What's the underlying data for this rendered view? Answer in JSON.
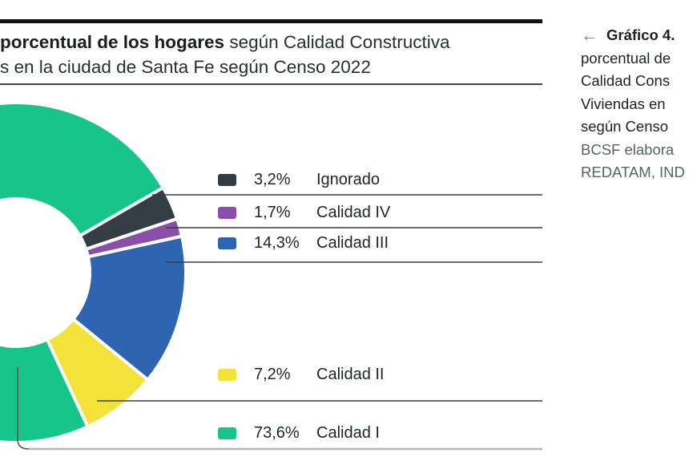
{
  "figure": {
    "title_bold": "porcentual de los hogares",
    "title_rest_line1": " según Calidad Constructiva",
    "title_line2": "s en la ciudad de Santa Fe según Censo 2022"
  },
  "side_caption": {
    "arrow_icon": "arrow-left-icon",
    "arrow_glyph": "←",
    "heading": "Gráfico 4.",
    "lines": [
      "porcentual de",
      "Calidad Cons",
      "Viviendas en",
      "según Censo"
    ],
    "source_lines": [
      "BCSF elabora",
      "REDATAM, IND"
    ],
    "accent_color": "#1db584"
  },
  "legend": [
    {
      "pct": "3,2%",
      "label": "Ignorado",
      "color": "#333d44"
    },
    {
      "pct": "1,7%",
      "label": "Calidad IV",
      "color": "#8a4fa8"
    },
    {
      "pct": "14,3%",
      "label": "Calidad III",
      "color": "#2f64b0"
    },
    {
      "pct": "7,2%",
      "label": "Calidad II",
      "color": "#f2e23a"
    },
    {
      "pct": "73,6%",
      "label": "Calidad I",
      "color": "#17c48a"
    }
  ],
  "chart_data": {
    "type": "pie",
    "subtype": "donut",
    "title": "Distribución porcentual de los hogares según Calidad Constructiva de las Viviendas en la ciudad de Santa Fe según Censo 2022",
    "categories": [
      "Ignorado",
      "Calidad IV",
      "Calidad III",
      "Calidad II",
      "Calidad I"
    ],
    "values": [
      3.2,
      1.7,
      14.3,
      7.2,
      73.6
    ],
    "unit": "%",
    "colors": [
      "#333d44",
      "#8a4fa8",
      "#2f64b0",
      "#f2e23a",
      "#17c48a"
    ],
    "legend_position": "right",
    "data_labels": [
      "3,2%",
      "1,7%",
      "14,3%",
      "7,2%",
      "73,6%"
    ]
  }
}
